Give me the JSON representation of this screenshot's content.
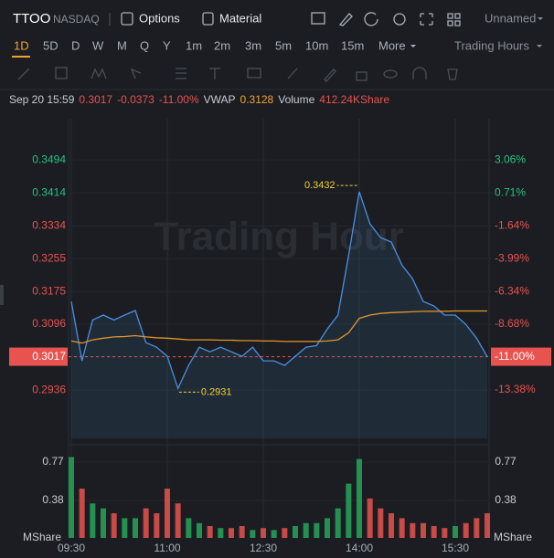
{
  "header": {
    "symbol": "TTOO",
    "exchange": "NASDAQ",
    "options": "Options",
    "material": "Material",
    "layout": "Unnamed"
  },
  "periods": [
    "1D",
    "5D",
    "D",
    "W",
    "M",
    "Q",
    "Y",
    "1m",
    "2m",
    "3m",
    "5m",
    "10m",
    "15m",
    "More"
  ],
  "session": "Trading Hours",
  "quote": {
    "time": "Sep 20 15:59",
    "price": "0.3017",
    "change": "-0.0373",
    "change_pct": "-11.00%",
    "vwap": "0.3128",
    "volume_label": "Volume",
    "volume": "412.24KShare"
  },
  "chart_data": {
    "type": "line",
    "watermark": "Trading Hour",
    "x": [
      "09:30",
      "09:40",
      "09:50",
      "10:00",
      "10:10",
      "10:20",
      "10:30",
      "10:40",
      "10:50",
      "11:00",
      "11:10",
      "11:20",
      "11:30",
      "11:40",
      "11:50",
      "12:00",
      "12:10",
      "12:20",
      "12:30",
      "12:40",
      "12:50",
      "13:00",
      "13:10",
      "13:20",
      "13:30",
      "13:40",
      "13:50",
      "14:00",
      "14:10",
      "14:20",
      "14:30",
      "14:40",
      "14:50",
      "15:00",
      "15:10",
      "15:20",
      "15:30",
      "15:40",
      "15:50",
      "16:00"
    ],
    "xlim": [
      "09:30",
      "16:00"
    ],
    "xticks": [
      "09:30",
      "11:00",
      "12:30",
      "14:00",
      "15:30"
    ],
    "series": [
      {
        "name": "Price",
        "color": "#4a90e2",
        "values": [
          0.3151,
          0.3007,
          0.3106,
          0.3118,
          0.3106,
          0.3118,
          0.3129,
          0.3051,
          0.304,
          0.3018,
          0.294,
          0.2996,
          0.304,
          0.3029,
          0.304,
          0.3029,
          0.3018,
          0.304,
          0.3007,
          0.3007,
          0.2996,
          0.3018,
          0.304,
          0.3044,
          0.3084,
          0.3118,
          0.3262,
          0.3417,
          0.3339,
          0.3306,
          0.3295,
          0.3239,
          0.3206,
          0.3151,
          0.314,
          0.3118,
          0.3118,
          0.3095,
          0.3062,
          0.3017
        ]
      },
      {
        "name": "VWAP",
        "color": "#e0962a",
        "values": [
          0.3055,
          0.305,
          0.3058,
          0.3062,
          0.3065,
          0.3066,
          0.3068,
          0.3065,
          0.3063,
          0.3062,
          0.306,
          0.3058,
          0.3058,
          0.3058,
          0.3057,
          0.3057,
          0.3056,
          0.3056,
          0.3055,
          0.3055,
          0.3054,
          0.3054,
          0.3054,
          0.3054,
          0.3055,
          0.3058,
          0.3075,
          0.311,
          0.3118,
          0.3122,
          0.3124,
          0.3125,
          0.3126,
          0.3127,
          0.3127,
          0.3127,
          0.3128,
          0.3128,
          0.3128,
          0.3128
        ]
      }
    ],
    "last": 0.3017,
    "ylim": [
      0.2819,
      0.3594
    ],
    "yticks": [
      0.3494,
      0.3414,
      0.3334,
      0.3255,
      0.3175,
      0.3096,
      0.3017,
      0.2936
    ],
    "y2lim": [
      -16.84,
      6.02
    ],
    "y2ticks": [
      {
        "value": 3.06,
        "label": "3.06%"
      },
      {
        "value": 0.71,
        "label": "0.71%"
      },
      {
        "value": -1.64,
        "label": "-1.64%"
      },
      {
        "value": -3.99,
        "label": "-3.99%"
      },
      {
        "value": -6.34,
        "label": "-6.34%"
      },
      {
        "value": -8.68,
        "label": "-8.68%"
      },
      {
        "value": -11.0,
        "label": "-11.00%"
      },
      {
        "value": -13.38,
        "label": "-13.38%"
      }
    ],
    "annotations": [
      {
        "x": "13:58",
        "y": 0.3432
      },
      {
        "x": "11:11",
        "y": 0.2931
      }
    ],
    "grid": true,
    "volume": {
      "unit": "MShare",
      "ylim": [
        0,
        0.88
      ],
      "yticks": [
        0.77,
        0.38
      ],
      "up_color": "#26a65b",
      "down_color": "#e8534f",
      "values": [
        0.82,
        0.5,
        0.35,
        0.3,
        0.25,
        0.2,
        0.2,
        0.3,
        0.25,
        0.5,
        0.35,
        0.2,
        0.15,
        0.12,
        0.1,
        0.1,
        0.12,
        0.08,
        0.1,
        0.08,
        0.1,
        0.12,
        0.15,
        0.15,
        0.2,
        0.3,
        0.55,
        0.8,
        0.4,
        0.3,
        0.25,
        0.2,
        0.15,
        0.15,
        0.12,
        0.1,
        0.12,
        0.15,
        0.2,
        0.25
      ]
    }
  }
}
